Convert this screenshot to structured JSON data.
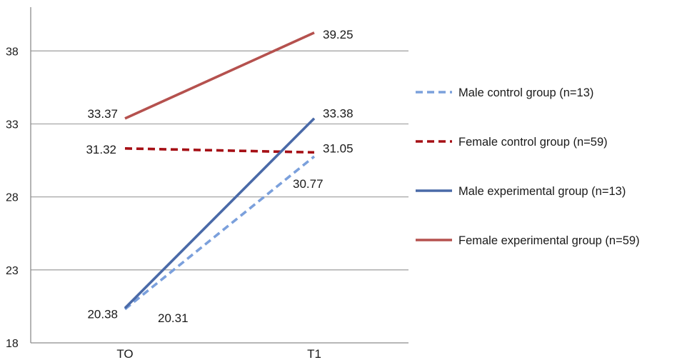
{
  "chart_data": {
    "type": "line",
    "categories": [
      "TO",
      "T1"
    ],
    "ylim": [
      18,
      41
    ],
    "yticks": [
      18,
      23,
      28,
      33,
      38
    ],
    "grid": true,
    "legend_position": "right",
    "series": [
      {
        "name": "Male control group (n=13)",
        "values": [
          20.31,
          30.77
        ],
        "color": "#7ba0dc",
        "style": "dashed"
      },
      {
        "name": "Female control group (n=59)",
        "values": [
          31.32,
          31.05
        ],
        "color": "#a50f15",
        "style": "dashed"
      },
      {
        "name": "Male experimental group (n=13)",
        "values": [
          20.38,
          33.38
        ],
        "color": "#4a6aa8",
        "style": "solid"
      },
      {
        "name": "Female experimental group (n=59)",
        "values": [
          33.37,
          39.25
        ],
        "color": "#b5514e",
        "style": "solid"
      }
    ],
    "data_labels": [
      {
        "series": 0,
        "point": 0,
        "text": "20.31"
      },
      {
        "series": 0,
        "point": 1,
        "text": "30.77"
      },
      {
        "series": 1,
        "point": 0,
        "text": "31.32"
      },
      {
        "series": 1,
        "point": 1,
        "text": "31.05"
      },
      {
        "series": 2,
        "point": 0,
        "text": "20.38"
      },
      {
        "series": 2,
        "point": 1,
        "text": "33.38"
      },
      {
        "series": 3,
        "point": 0,
        "text": "33.37"
      },
      {
        "series": 3,
        "point": 1,
        "text": "39.25"
      }
    ]
  },
  "colors": {
    "axis": "#8c8c8c",
    "grid": "#a6a6a6"
  }
}
